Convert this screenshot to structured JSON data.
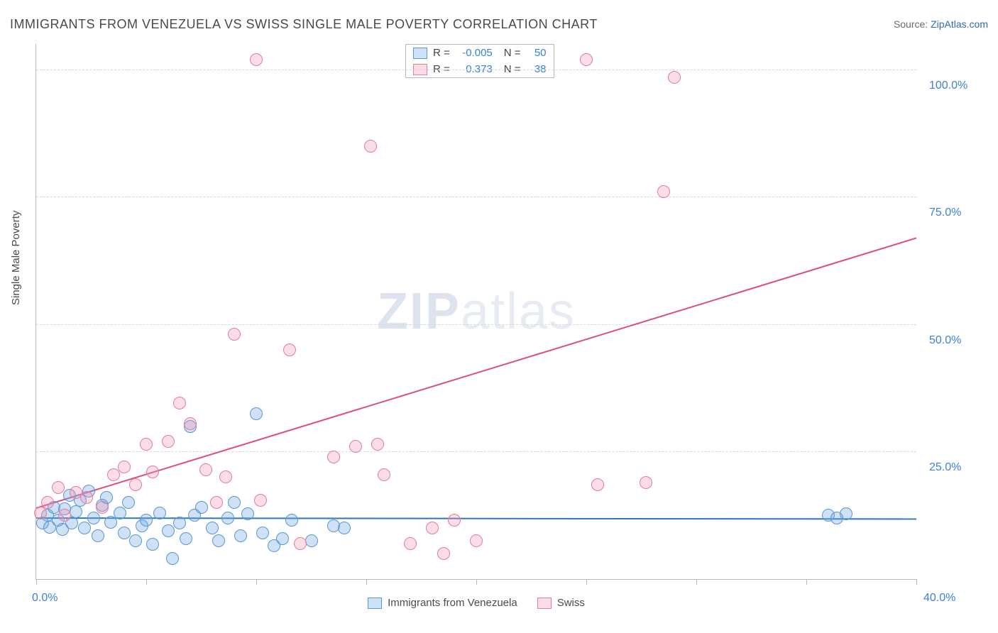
{
  "title": "IMMIGRANTS FROM VENEZUELA VS SWISS SINGLE MALE POVERTY CORRELATION CHART",
  "source_prefix": "Source: ",
  "source_link": "ZipAtlas.com",
  "ylabel": "Single Male Poverty",
  "watermark_a": "ZIP",
  "watermark_b": "atlas",
  "chart": {
    "xlim": [
      0,
      40
    ],
    "ylim": [
      0,
      105
    ],
    "xtick_positions": [
      0,
      5,
      10,
      15,
      20,
      25,
      30,
      35,
      40
    ],
    "xtick_labels": {
      "0": "0.0%",
      "40": "40.0%"
    },
    "grid_y": [
      25,
      50,
      75,
      100
    ],
    "ytick_labels": {
      "25": "25.0%",
      "50": "50.0%",
      "75": "75.0%",
      "100": "100.0%"
    },
    "background_color": "#ffffff",
    "grid_color": "#d8d8d8",
    "axis_color": "#b9b9b9",
    "tick_label_color": "#3b82d6",
    "marker_radius": 8,
    "marker_border_width": 1,
    "series": [
      {
        "name": "Immigrants from Venezuela",
        "fill": "rgba(116,169,226,0.35)",
        "stroke": "#5a96d4",
        "trend_color": "#2f76c2",
        "r_value": "-0.005",
        "n_value": "50",
        "trend": {
          "x0": 0,
          "y0": 12.1,
          "x1": 40,
          "y1": 11.9
        },
        "points": [
          [
            0.3,
            11
          ],
          [
            0.5,
            12.5
          ],
          [
            0.6,
            10.2
          ],
          [
            0.8,
            14
          ],
          [
            1.0,
            11.5
          ],
          [
            1.2,
            9.8
          ],
          [
            1.3,
            13.8
          ],
          [
            1.5,
            16.5
          ],
          [
            1.6,
            11.0
          ],
          [
            1.8,
            13.2
          ],
          [
            2.0,
            15.5
          ],
          [
            2.2,
            10.0
          ],
          [
            2.4,
            17.2
          ],
          [
            2.6,
            12.0
          ],
          [
            2.8,
            8.5
          ],
          [
            3.0,
            14.5
          ],
          [
            3.2,
            16.0
          ],
          [
            3.4,
            11.2
          ],
          [
            3.8,
            13.0
          ],
          [
            4.0,
            9.0
          ],
          [
            4.2,
            15.0
          ],
          [
            4.5,
            7.5
          ],
          [
            4.8,
            10.5
          ],
          [
            5.0,
            11.5
          ],
          [
            5.3,
            6.8
          ],
          [
            5.6,
            13.0
          ],
          [
            6.0,
            9.5
          ],
          [
            6.2,
            4.0
          ],
          [
            6.5,
            11.0
          ],
          [
            6.8,
            8.0
          ],
          [
            7.0,
            30.0
          ],
          [
            7.2,
            12.5
          ],
          [
            7.5,
            14.0
          ],
          [
            8.0,
            10.0
          ],
          [
            8.3,
            7.5
          ],
          [
            8.7,
            12.0
          ],
          [
            9.0,
            15.0
          ],
          [
            9.3,
            8.5
          ],
          [
            9.6,
            12.8
          ],
          [
            10.0,
            32.5
          ],
          [
            10.3,
            9.0
          ],
          [
            10.8,
            6.5
          ],
          [
            11.2,
            8.0
          ],
          [
            11.6,
            11.5
          ],
          [
            12.5,
            7.5
          ],
          [
            13.5,
            10.5
          ],
          [
            14.0,
            10.0
          ],
          [
            36.0,
            12.5
          ],
          [
            36.8,
            12.8
          ],
          [
            36.4,
            12.0
          ]
        ]
      },
      {
        "name": "Swiss",
        "fill": "rgba(240,150,175,0.32)",
        "stroke": "#e47ba0",
        "trend_color": "#de4d7e",
        "r_value": "0.373",
        "n_value": "38",
        "trend": {
          "x0": 0,
          "y0": 14.0,
          "x1": 40,
          "y1": 67.0
        },
        "points": [
          [
            0.2,
            13.0
          ],
          [
            0.5,
            15.0
          ],
          [
            1.0,
            18.0
          ],
          [
            1.3,
            12.5
          ],
          [
            1.8,
            17.0
          ],
          [
            2.3,
            16.0
          ],
          [
            3.0,
            14.0
          ],
          [
            3.5,
            20.5
          ],
          [
            4.0,
            22.0
          ],
          [
            4.5,
            18.5
          ],
          [
            5.0,
            26.5
          ],
          [
            5.3,
            21.0
          ],
          [
            6.0,
            27.0
          ],
          [
            6.5,
            34.5
          ],
          [
            7.0,
            30.5
          ],
          [
            7.7,
            21.5
          ],
          [
            8.2,
            15.0
          ],
          [
            8.6,
            20.0
          ],
          [
            9.0,
            48.0
          ],
          [
            10.0,
            102.0
          ],
          [
            10.2,
            15.5
          ],
          [
            11.5,
            45.0
          ],
          [
            12.0,
            7.0
          ],
          [
            13.5,
            24.0
          ],
          [
            14.5,
            26.0
          ],
          [
            15.2,
            85.0
          ],
          [
            15.5,
            26.5
          ],
          [
            15.8,
            20.5
          ],
          [
            17.0,
            7.0
          ],
          [
            18.0,
            10.0
          ],
          [
            18.5,
            5.0
          ],
          [
            19.0,
            11.5
          ],
          [
            20.0,
            7.5
          ],
          [
            25.0,
            102.0
          ],
          [
            25.5,
            18.5
          ],
          [
            27.7,
            19.0
          ],
          [
            29.0,
            98.5
          ],
          [
            28.5,
            76.0
          ]
        ]
      }
    ]
  },
  "legend_top": {
    "r_label": "R =",
    "n_label": "N ="
  }
}
